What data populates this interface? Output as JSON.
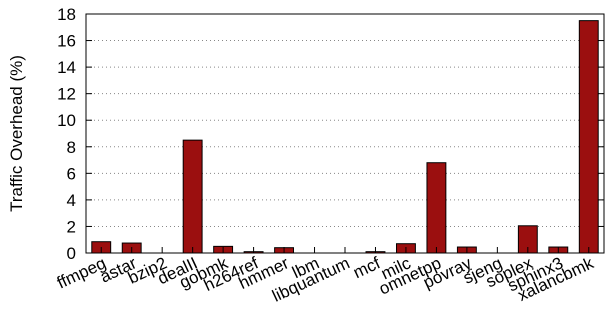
{
  "chart_data": {
    "type": "bar",
    "title": "",
    "xlabel": "",
    "ylabel": "Traffic Overhead (%)",
    "ylim": [
      0,
      18
    ],
    "yticks": [
      0,
      2,
      4,
      6,
      8,
      10,
      12,
      14,
      16,
      18
    ],
    "grid": true,
    "bar_color": "#9b0f0f",
    "categories": [
      "ffmpeg",
      "astar",
      "bzip2",
      "dealII",
      "gobmk",
      "h264ref",
      "hmmer",
      "lbm",
      "libquantum",
      "mcf",
      "milc",
      "omnetpp",
      "povray",
      "sjeng",
      "soplex",
      "sphinx3",
      "xalancbmk"
    ],
    "values": [
      0.85,
      0.75,
      0.0,
      8.5,
      0.5,
      0.1,
      0.4,
      0.0,
      0.0,
      0.1,
      0.7,
      6.8,
      0.45,
      0.0,
      2.05,
      0.45,
      17.5
    ]
  }
}
